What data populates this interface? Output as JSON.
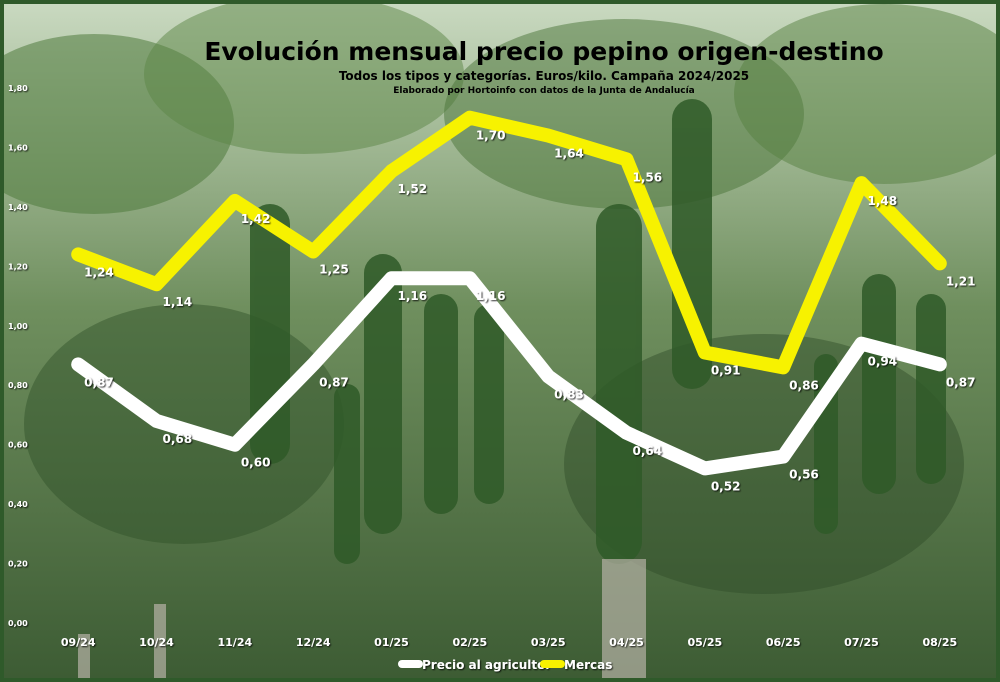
{
  "chart_data": {
    "type": "line",
    "title": "Evolución mensual precio pepino origen-destino",
    "subtitle": "Todos los tipos y categorías. Euros/kilo. Campaña 2024/2025",
    "source": "Elaborado por Hortoinfo con datos de la Junta de Andalucía",
    "categories": [
      "09/24",
      "10/24",
      "11/24",
      "12/24",
      "01/25",
      "02/25",
      "03/25",
      "04/25",
      "05/25",
      "06/25",
      "07/25",
      "08/25"
    ],
    "ylim": [
      0,
      1.8
    ],
    "yticks": [
      "0,00",
      "0,20",
      "0,40",
      "0,60",
      "0,80",
      "1,00",
      "1,20",
      "1,40",
      "1,60",
      "1,80"
    ],
    "grid": false,
    "legend_position": "bottom",
    "series": [
      {
        "name": "Precio al agricultor",
        "color": "#ffffff",
        "values": [
          0.87,
          0.68,
          0.6,
          0.87,
          1.16,
          1.16,
          0.83,
          0.64,
          0.52,
          0.56,
          0.94,
          0.87
        ],
        "labels": [
          "0,87",
          "0,68",
          "0,60",
          "0,87",
          "1,16",
          "1,16",
          "0,83",
          "0,64",
          "0,52",
          "0,56",
          "0,94",
          "0,87"
        ]
      },
      {
        "name": "Mercas",
        "color": "#f7f200",
        "values": [
          1.24,
          1.14,
          1.42,
          1.25,
          1.52,
          1.7,
          1.64,
          1.56,
          0.91,
          0.86,
          1.48,
          1.21
        ],
        "labels": [
          "1,24",
          "1,14",
          "1,42",
          "1,25",
          "1,52",
          "1,70",
          "1,64",
          "1,56",
          "0,91",
          "0,86",
          "1,48",
          "1,21"
        ]
      }
    ]
  }
}
